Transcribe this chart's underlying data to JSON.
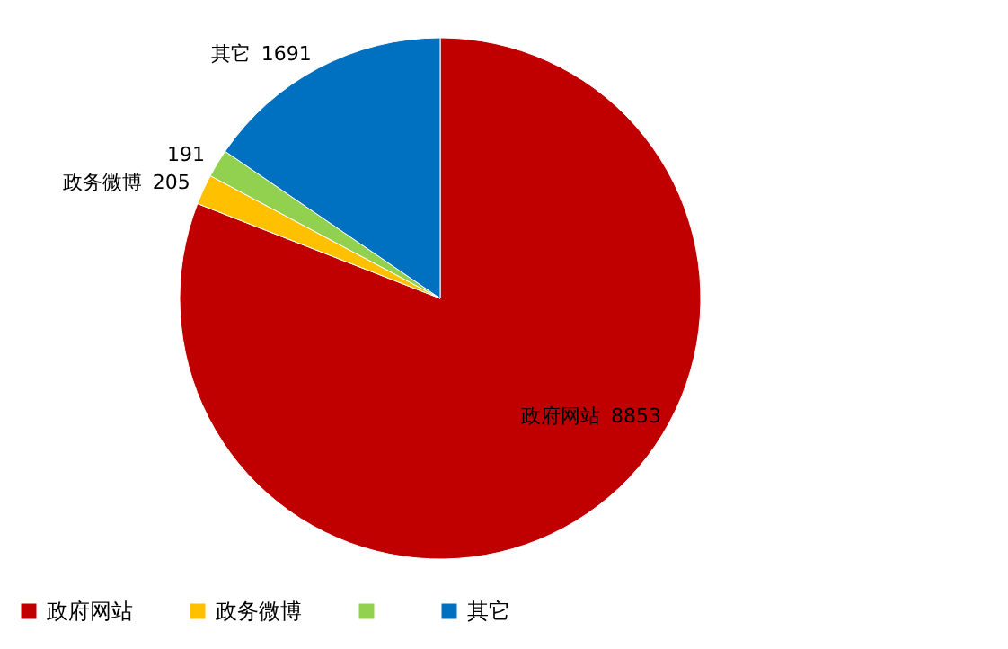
{
  "chart_data": {
    "type": "pie",
    "categories": [
      "政府网站",
      "政务微博",
      null,
      "其它"
    ],
    "values": [
      8853,
      205,
      191,
      1691
    ],
    "colors": [
      "#c00000",
      "#ffc000",
      "#92d050",
      "#0070c0"
    ],
    "legend": "bottom",
    "data_labels": true
  }
}
